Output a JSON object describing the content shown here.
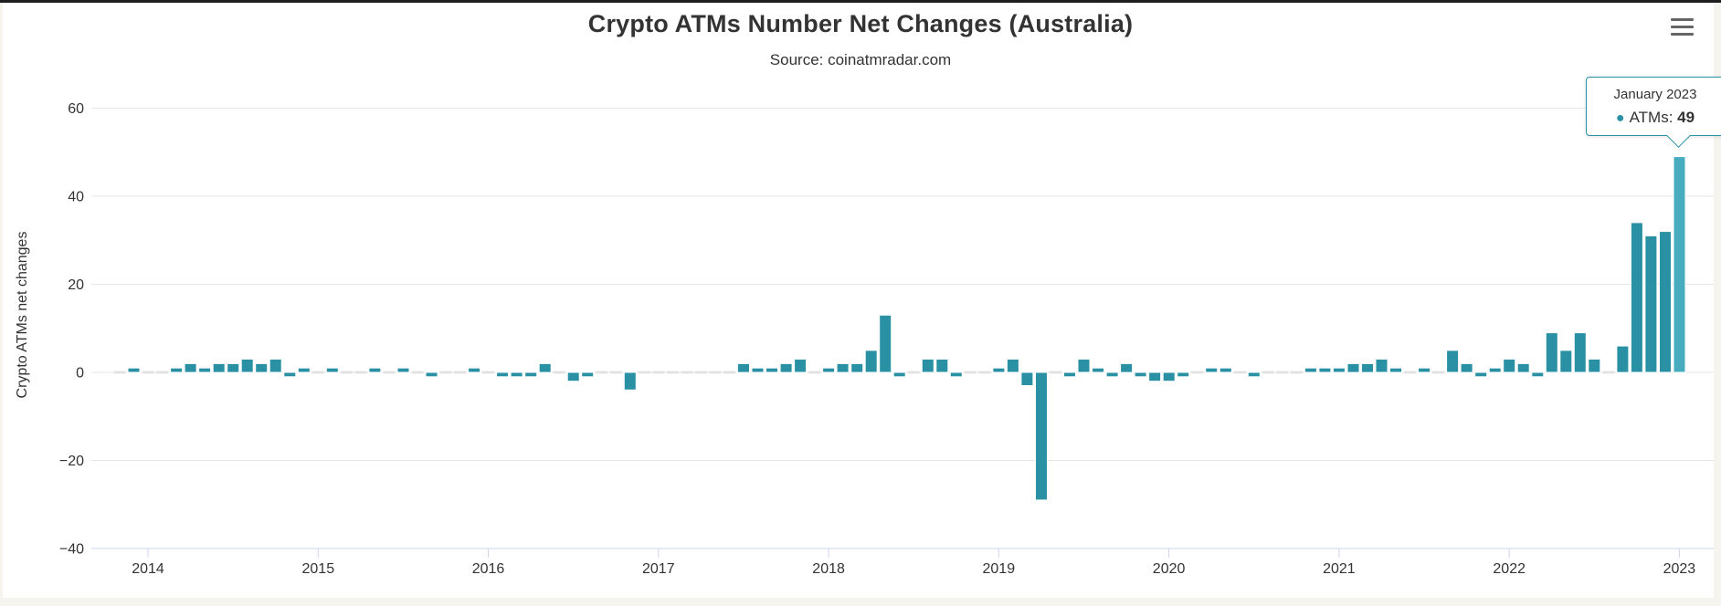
{
  "chart": {
    "title": "Crypto ATMs Number Net Changes (Australia)",
    "subtitle": "Source: coinatmradar.com"
  },
  "tooltip": {
    "header": "January 2023",
    "marker": "●",
    "series_label": "ATMs: ",
    "value": "49",
    "border_color": "#2991a3"
  },
  "colors": {
    "bar": "#2991a3",
    "bar_hover": "#47adbe",
    "bar_stroke": "#ffffff",
    "zero_bar": "#e2e2e2",
    "gridline": "#e6e6e6",
    "axis_line": "#ccd6eb",
    "axis_label": "#333333",
    "y_title": "#333333",
    "menu_icon": "#666666",
    "page_edge": "#f5f4ef"
  },
  "chart_data": {
    "type": "bar",
    "title": "Crypto ATMs Number Net Changes (Australia)",
    "subtitle": "Source: coinatmradar.com",
    "xlabel": "",
    "ylabel": "Crypto ATMs net changes",
    "ylim": [
      -40,
      60
    ],
    "yticks": [
      60,
      40,
      20,
      0,
      -20,
      -40
    ],
    "x_year_ticks": [
      2014,
      2015,
      2016,
      2017,
      2018,
      2019,
      2020,
      2021,
      2022,
      2023
    ],
    "grid": true,
    "legend": false,
    "start_month": "2013-11",
    "series": [
      {
        "name": "ATMs",
        "color": "#2991a3",
        "hover_color": "#47adbe",
        "monthly_values": [
          0,
          1,
          0,
          0,
          1,
          2,
          1,
          2,
          2,
          3,
          2,
          3,
          -1,
          1,
          0,
          1,
          0,
          0,
          1,
          0,
          1,
          0,
          -1,
          0,
          0,
          1,
          0,
          -1,
          -1,
          -1,
          2,
          0,
          -2,
          -1,
          0,
          0,
          -4,
          0,
          0,
          0,
          0,
          0,
          0,
          0,
          2,
          1,
          1,
          2,
          3,
          0,
          1,
          2,
          2,
          5,
          13,
          -1,
          0,
          3,
          3,
          -1,
          0,
          0,
          1,
          3,
          -3,
          -29,
          0,
          -1,
          3,
          1,
          -1,
          2,
          -1,
          -2,
          -2,
          -1,
          0,
          1,
          1,
          0,
          -1,
          0,
          0,
          0,
          1,
          1,
          1,
          2,
          2,
          3,
          1,
          0,
          1,
          0,
          5,
          2,
          -1,
          1,
          3,
          2,
          -1,
          9,
          5,
          9,
          3,
          0,
          6,
          34,
          31,
          32,
          49
        ],
        "hovered_point": {
          "label": "January 2023",
          "value": 49
        }
      }
    ]
  }
}
